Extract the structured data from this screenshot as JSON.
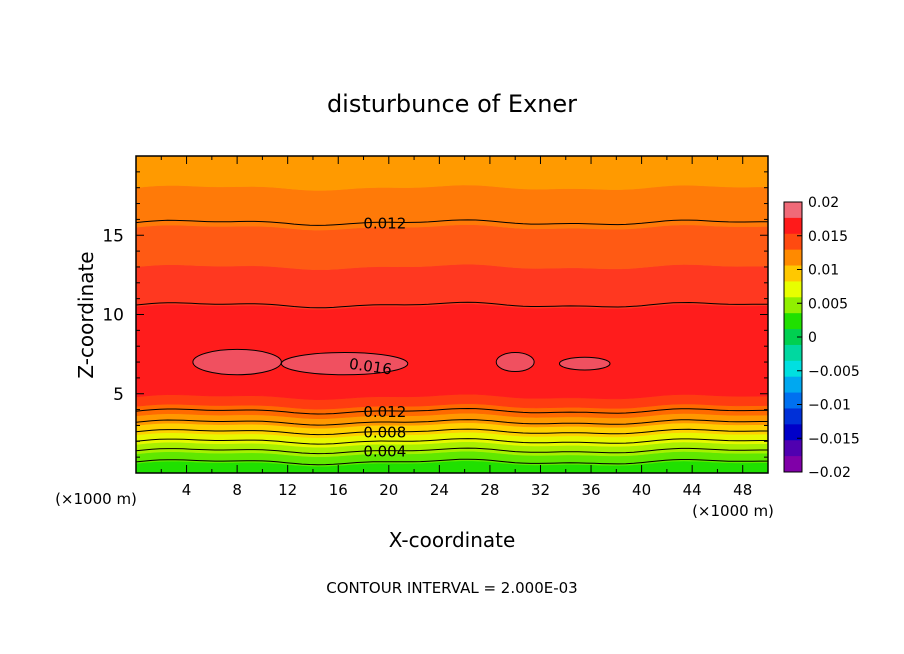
{
  "chart_data": {
    "type": "heatmap",
    "title": "disturbunce of Exner",
    "xlabel": "X-coordinate",
    "ylabel": "Z-coordinate",
    "x_unit_left": "(×1000 m)",
    "x_unit_right": "(×1000 m)",
    "xlim": [
      0,
      50
    ],
    "ylim": [
      0,
      20
    ],
    "x_ticks": [
      4,
      8,
      12,
      16,
      20,
      24,
      28,
      32,
      36,
      40,
      44,
      48
    ],
    "y_ticks": [
      5,
      10,
      15
    ],
    "footer": "CONTOUR INTERVAL = 2.000E-03",
    "contour_interval": 0.002,
    "colorbar": {
      "min": -0.02,
      "max": 0.02,
      "tick_labels": [
        "0.02",
        "0.015",
        "0.01",
        "0.005",
        "0",
        "-0.005",
        "-0.01",
        "-0.015",
        "-0.02"
      ],
      "tick_values": [
        0.02,
        0.015,
        0.01,
        0.005,
        0,
        -0.005,
        -0.01,
        -0.015,
        -0.02
      ],
      "colors": [
        "#f06a78",
        "#ff1a1a",
        "#ff4a10",
        "#ff8a00",
        "#ffc800",
        "#e8ff00",
        "#90f000",
        "#20e000",
        "#00d050",
        "#00d8a0",
        "#00e0e0",
        "#00a8f0",
        "#0070f0",
        "#0030d8",
        "#0000c8",
        "#5000b0",
        "#8000a8"
      ]
    },
    "bands": [
      {
        "from": 0.0,
        "to": 0.6,
        "value": 0.001,
        "color": "#20e000"
      },
      {
        "from": 0.6,
        "to": 1.2,
        "value": 0.003,
        "color": "#60e800"
      },
      {
        "from": 1.2,
        "to": 1.8,
        "value": 0.005,
        "color": "#a8f000"
      },
      {
        "from": 1.8,
        "to": 2.4,
        "value": 0.007,
        "color": "#e8f800"
      },
      {
        "from": 2.4,
        "to": 3.0,
        "value": 0.009,
        "color": "#ffd000"
      },
      {
        "from": 3.0,
        "to": 3.6,
        "value": 0.01,
        "color": "#ff9800"
      },
      {
        "from": 3.6,
        "to": 4.2,
        "value": 0.011,
        "color": "#ff6a00"
      },
      {
        "from": 4.2,
        "to": 4.8,
        "value": 0.013,
        "color": "#ff3c10"
      },
      {
        "from": 4.8,
        "to": 10.5,
        "value": 0.015,
        "color": "#ff1c1c"
      },
      {
        "from": 10.5,
        "to": 13.0,
        "value": 0.013,
        "color": "#ff3820"
      },
      {
        "from": 13.0,
        "to": 15.5,
        "value": 0.012,
        "color": "#ff5a14"
      },
      {
        "from": 15.5,
        "to": 18.0,
        "value": 0.011,
        "color": "#ff7a08"
      },
      {
        "from": 18.0,
        "to": 20.0,
        "value": 0.01,
        "color": "#ff9a00"
      }
    ],
    "contours": [
      {
        "z": 0.7,
        "label": ""
      },
      {
        "z": 1.4,
        "label": "0.004"
      },
      {
        "z": 2.0,
        "label": ""
      },
      {
        "z": 2.6,
        "label": "0.008"
      },
      {
        "z": 3.2,
        "label": ""
      },
      {
        "z": 3.9,
        "label": "0.012"
      },
      {
        "z": 10.6,
        "label": ""
      },
      {
        "z": 15.8,
        "label": "0.012"
      }
    ],
    "cells": [
      {
        "x_center": 8.0,
        "z_center": 7.0,
        "x_half": 3.5,
        "z_half": 0.8,
        "label": ""
      },
      {
        "x_center": 16.5,
        "z_center": 6.9,
        "x_half": 5.0,
        "z_half": 0.7,
        "label": "0.016"
      },
      {
        "x_center": 30.0,
        "z_center": 7.0,
        "x_half": 1.5,
        "z_half": 0.6,
        "label": ""
      },
      {
        "x_center": 35.5,
        "z_center": 6.9,
        "x_half": 2.0,
        "z_half": 0.4,
        "label": ""
      }
    ]
  }
}
